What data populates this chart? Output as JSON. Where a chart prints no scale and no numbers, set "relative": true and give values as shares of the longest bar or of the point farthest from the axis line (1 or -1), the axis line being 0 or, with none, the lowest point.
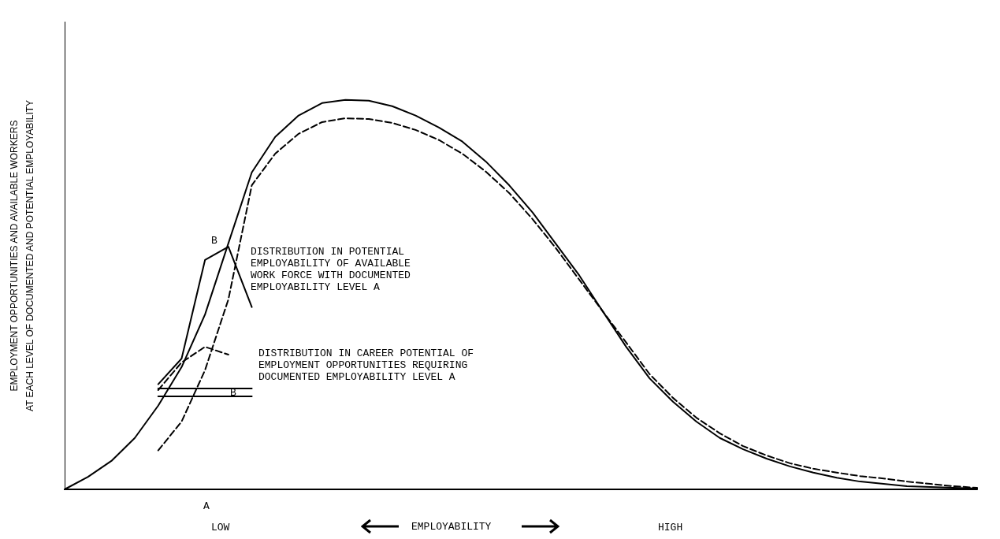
{
  "chart_data": {
    "type": "line",
    "relative": true,
    "marker": "none",
    "xlabel": "EMPLOYABILITY",
    "ylabel": "EMPLOYMENT OPPORTUNITIES AND AVAILABLE WORKERS\nAT EACH LEVEL OF DOCUMENTED AND POTENTIAL EMPLOYABILITY",
    "categories": [
      null,
      null,
      null,
      null,
      null,
      null,
      null,
      null,
      null,
      null,
      null,
      null,
      null,
      null,
      null,
      null,
      null,
      null,
      null,
      null,
      null,
      null,
      null,
      null,
      null,
      null,
      null,
      null,
      null,
      null,
      null,
      null,
      null,
      null,
      null,
      null,
      null,
      null,
      null,
      null
    ],
    "series": [
      {
        "color": "#000000",
        "line_style": "solid",
        "values": [
          0,
          0.032,
          0.073,
          0.132,
          0.215,
          0.314,
          0.449,
          0.632,
          0.814,
          0.905,
          0.96,
          0.992,
          1,
          0.998,
          0.984,
          0.96,
          0.929,
          0.893,
          0.842,
          0.781,
          0.711,
          0.63,
          0.549,
          0.457,
          0.366,
          0.285,
          0.225,
          0.174,
          0.132,
          0.103,
          0.079,
          0.059,
          0.043,
          0.03,
          0.02,
          0.014,
          0.008,
          0.006,
          0.004,
          0.002
        ]
      },
      {
        "color": "#000000",
        "line_style": "dashed",
        "values": [
          null,
          null,
          null,
          null,
          0.1,
          0.174,
          0.306,
          0.488,
          0.781,
          0.862,
          0.913,
          0.943,
          0.953,
          0.951,
          0.941,
          0.923,
          0.897,
          0.862,
          0.816,
          0.761,
          0.694,
          0.619,
          0.538,
          0.457,
          0.377,
          0.296,
          0.235,
          0.184,
          0.144,
          0.111,
          0.087,
          0.067,
          0.053,
          0.043,
          0.034,
          0.028,
          0.02,
          0.014,
          0.008,
          0.004
        ]
      },
      {
        "color": "#000000",
        "line_style": "solid",
        "values": [
          null,
          null,
          null,
          null,
          0.27,
          0.336,
          0.589,
          0.623,
          0.468,
          null,
          null,
          null,
          null,
          null,
          null,
          null,
          null,
          null,
          null,
          null,
          null,
          null,
          null,
          null,
          null,
          null,
          null,
          null,
          null,
          null,
          null,
          null,
          null,
          null,
          null,
          null,
          null,
          null,
          null,
          null
        ]
      },
      {
        "color": "#000000",
        "line_style": "solid",
        "values": [
          null,
          null,
          null,
          null,
          0.259,
          0.259,
          0.259,
          0.259,
          0.259,
          null,
          null,
          null,
          null,
          null,
          null,
          null,
          null,
          null,
          null,
          null,
          null,
          null,
          null,
          null,
          null,
          null,
          null,
          null,
          null,
          null,
          null,
          null,
          null,
          null,
          null,
          null,
          null,
          null,
          null,
          null
        ]
      },
      {
        "color": "#000000",
        "line_style": "dashed",
        "values": [
          null,
          null,
          null,
          null,
          0.255,
          0.326,
          0.366,
          0.346,
          null,
          null,
          null,
          null,
          null,
          null,
          null,
          null,
          null,
          null,
          null,
          null,
          null,
          null,
          null,
          null,
          null,
          null,
          null,
          null,
          null,
          null,
          null,
          null,
          null,
          null,
          null,
          null,
          null,
          null,
          null,
          null
        ]
      },
      {
        "color": "#000000",
        "line_style": "solid",
        "values": [
          null,
          null,
          null,
          null,
          0.239,
          0.239,
          0.239,
          0.239,
          0.239,
          null,
          null,
          null,
          null,
          null,
          null,
          null,
          null,
          null,
          null,
          null,
          null,
          null,
          null,
          null,
          null,
          null,
          null,
          null,
          null,
          null,
          null,
          null,
          null,
          null,
          null,
          null,
          null,
          null,
          null,
          null
        ]
      }
    ],
    "annotations": [
      "DISTRIBUTION IN POTENTIAL\nEMPLOYABILITY OF AVAILABLE\nWORK FORCE WITH DOCUMENTED\nEMPLOYABILITY LEVEL A",
      "DISTRIBUTION IN CAREER POTENTIAL OF\nEMPLOYMENT OPPORTUNITIES REQUIRING\nDOCUMENTED EMPLOYABILITY LEVEL A",
      "B",
      "B",
      "A",
      "LOW",
      "HIGH"
    ]
  }
}
